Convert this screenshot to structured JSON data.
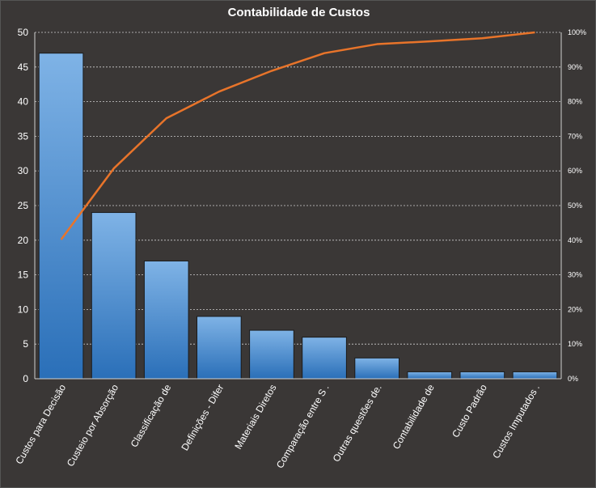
{
  "chart_data": {
    "type": "bar",
    "title": "Contabilidade  de Custos",
    "categories": [
      "Custos para Decisão",
      "Custeio por Absorção",
      "Classificação de",
      "Definições - Difer",
      "Materiais Diretos",
      "Comparação entre S .",
      "Outras questões de.",
      "Contabilidade de",
      "Custo Padrão",
      "Custos Imputados ."
    ],
    "series": [
      {
        "type": "bar",
        "values": [
          47,
          24,
          17,
          9,
          7,
          6,
          3,
          1,
          1,
          1
        ]
      },
      {
        "type": "line",
        "axis": "secondary",
        "values": [
          40.2,
          60.7,
          75.2,
          82.9,
          88.9,
          94.0,
          96.6,
          97.4,
          98.3,
          100
        ]
      }
    ],
    "yticks": [
      "0",
      "5",
      "10",
      "15",
      "20",
      "25",
      "30",
      "35",
      "40",
      "45",
      "50"
    ],
    "ylim": [
      0,
      50
    ],
    "y2ticks": [
      "0%",
      "10%",
      "20%",
      "30%",
      "40%",
      "50%",
      "60%",
      "70%",
      "80%",
      "90%",
      "100%"
    ],
    "y2lim": [
      0,
      100
    ],
    "grid": true,
    "colors": {
      "bar_top": "#7fb3e6",
      "bar_bottom": "#2a6fb8",
      "line": "#e8742a",
      "grid": "#cfcfcf",
      "background": "#3a3736"
    }
  }
}
